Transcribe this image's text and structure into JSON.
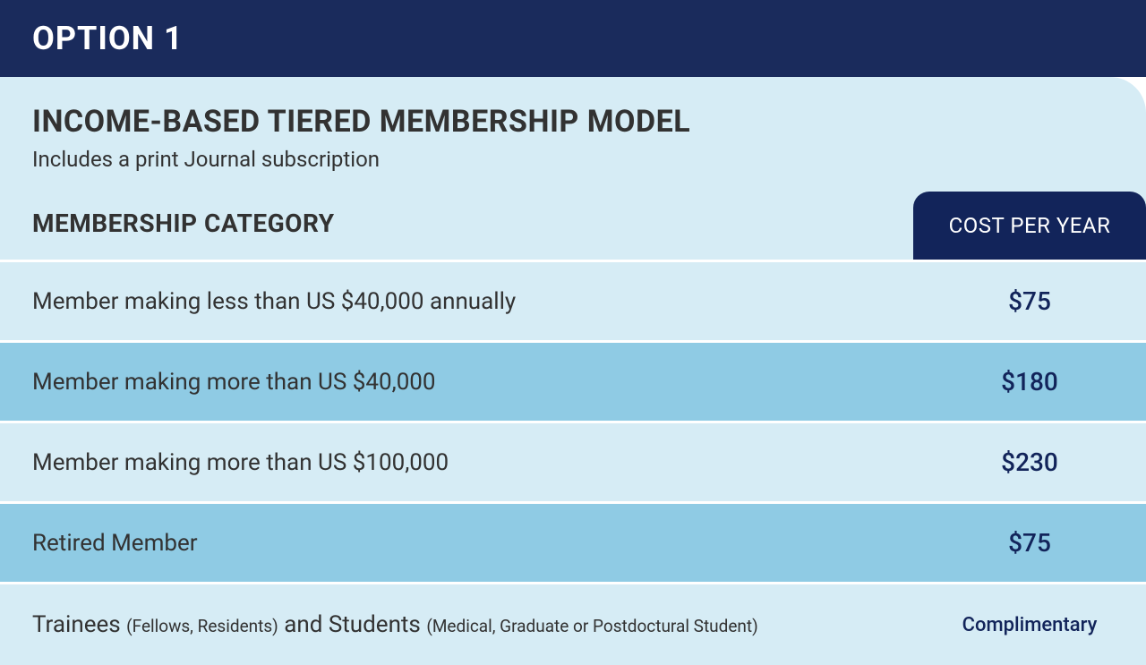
{
  "header": {
    "option_title": "OPTION 1"
  },
  "title_section": {
    "main_title": "INCOME-BASED TIERED MEMBERSHIP MODEL",
    "subtitle": "Includes a print Journal subscription"
  },
  "table_headers": {
    "category": "MEMBERSHIP CATEGORY",
    "cost": "COST PER YEAR"
  },
  "colors": {
    "header_bg": "#1a2b5c",
    "body_bg": "#d6ecf5",
    "row_light": "#d6ecf5",
    "row_dark": "#8fcbe4",
    "cost_tab_bg": "#12245a",
    "text_dark": "#323232",
    "text_white": "#ffffff",
    "cost_text": "#12245a",
    "divider": "#ffffff"
  },
  "typography": {
    "header_fontsize": 36,
    "main_title_fontsize": 34,
    "subtitle_fontsize": 24,
    "table_header_fontsize": 28,
    "row_fontsize": 26,
    "small_fontsize": 19,
    "cost_fontsize": 28
  },
  "rows": [
    {
      "label": "Member making less than US $40,000 annually",
      "cost": "$75",
      "shade": "light"
    },
    {
      "label": "Member making more than US $40,000",
      "cost": "$180",
      "shade": "dark"
    },
    {
      "label": "Member making more than US $100,000",
      "cost": "$230",
      "shade": "light"
    },
    {
      "label": "Retired Member",
      "cost": "$75",
      "shade": "dark"
    },
    {
      "label_prefix1": "Trainees ",
      "label_small1": "(Fellows, Residents)",
      "label_mid": " and Students ",
      "label_small2": "(Medical, Graduate or Postdoctural Student)",
      "cost": "Complimentary",
      "shade": "light",
      "complimentary": true
    }
  ]
}
